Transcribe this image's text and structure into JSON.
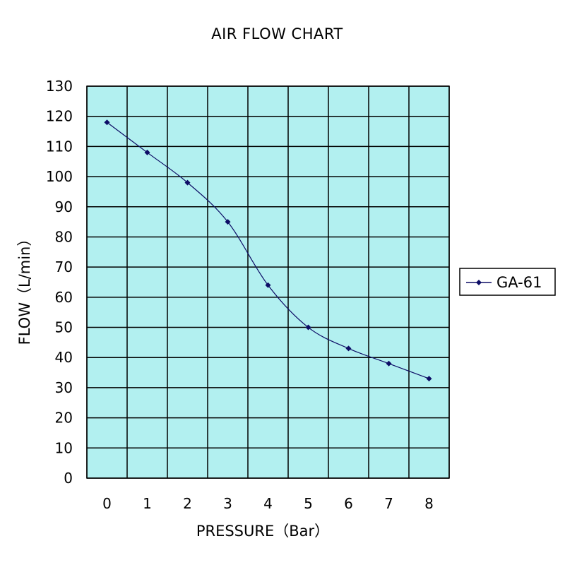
{
  "chart_data": {
    "type": "line",
    "title": "AIR FLOW CHART",
    "xlabel": "PRESSURE（Bar）",
    "ylabel": "FLOW（L/min）",
    "x": [
      0,
      1,
      2,
      3,
      4,
      5,
      6,
      7,
      8
    ],
    "x_tick_labels": [
      "0",
      "1",
      "2",
      "3",
      "4",
      "5",
      "6",
      "7",
      "8"
    ],
    "y_tick_labels": [
      "0",
      "10",
      "20",
      "30",
      "40",
      "50",
      "60",
      "70",
      "80",
      "90",
      "100",
      "110",
      "120",
      "130"
    ],
    "ylim": [
      0,
      130
    ],
    "grid": true,
    "legend_position": "right",
    "series": [
      {
        "name": "GA-61",
        "values": [
          118,
          108,
          98,
          85,
          64,
          50,
          43,
          38,
          33
        ]
      }
    ],
    "colors": {
      "plot_background": "#b2f0f0",
      "grid": "#000000",
      "series": "#0d0d66"
    }
  }
}
